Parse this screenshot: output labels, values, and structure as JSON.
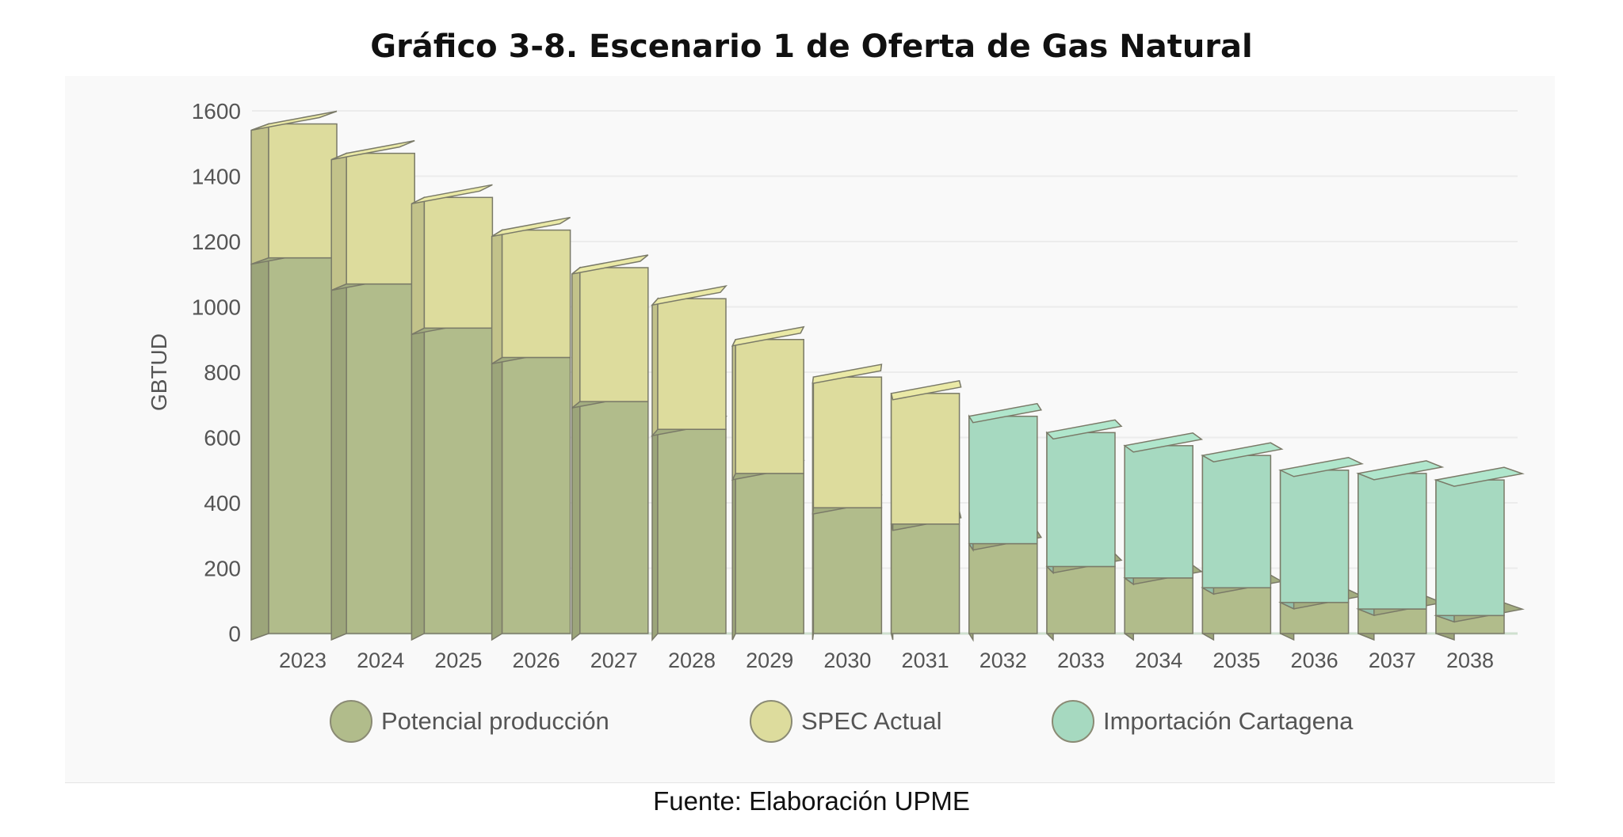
{
  "title": "Gráfico 3-8. Escenario 1 de Oferta de Gas Natural",
  "source": "Fuente: Elaboración UPME",
  "chart_data": {
    "type": "bar",
    "stacked": true,
    "style": "3d",
    "ylabel": "GBTUD",
    "xlabel": "",
    "ylim": [
      0,
      1600
    ],
    "yticks": [
      0,
      200,
      400,
      600,
      800,
      1000,
      1200,
      1400,
      1600
    ],
    "grid": true,
    "legend_position": "bottom",
    "categories": [
      "2023",
      "2024",
      "2025",
      "2026",
      "2027",
      "2028",
      "2029",
      "2030",
      "2031",
      "2032",
      "2033",
      "2034",
      "2035",
      "2036",
      "2037",
      "2038"
    ],
    "series": [
      {
        "name": "Potencial producción",
        "color": "#b1bc8b",
        "values": [
          1150,
          1070,
          935,
          845,
          710,
          625,
          490,
          385,
          335,
          275,
          205,
          170,
          140,
          95,
          75,
          55
        ]
      },
      {
        "name": "SPEC Actual",
        "color": "#dddc9d",
        "values": [
          410,
          400,
          400,
          390,
          410,
          400,
          410,
          400,
          400,
          0,
          0,
          0,
          0,
          0,
          0,
          0
        ]
      },
      {
        "name": "Importación Cartagena",
        "color": "#a6d9c0",
        "values": [
          0,
          0,
          0,
          0,
          0,
          0,
          0,
          0,
          0,
          390,
          410,
          405,
          405,
          405,
          415,
          415
        ]
      }
    ]
  }
}
